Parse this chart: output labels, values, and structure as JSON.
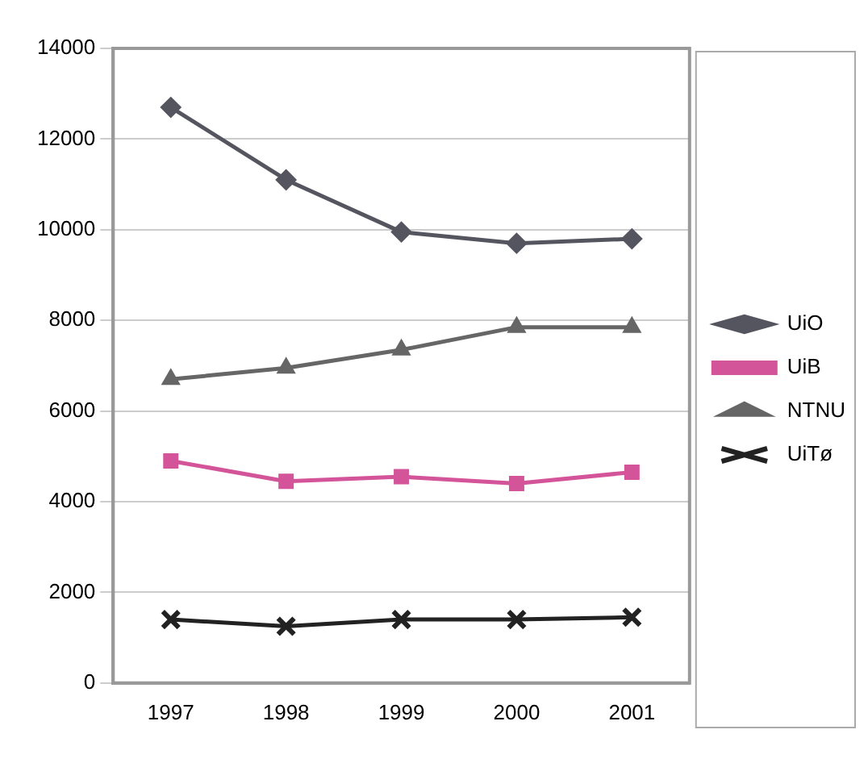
{
  "chart_data": {
    "type": "line",
    "categories": [
      "1997",
      "1998",
      "1999",
      "2000",
      "2001"
    ],
    "series": [
      {
        "name": "UiO",
        "color": "#555560",
        "marker": "diamond",
        "values": [
          12700,
          11100,
          9950,
          9700,
          9800
        ]
      },
      {
        "name": "UiB",
        "color": "#d4549a",
        "marker": "square",
        "values": [
          4900,
          4450,
          4550,
          4400,
          4650
        ]
      },
      {
        "name": "NTNU",
        "color": "#666666",
        "marker": "triangle",
        "values": [
          6700,
          6950,
          7350,
          7850,
          7850
        ]
      },
      {
        "name": "UiTø",
        "color": "#222222",
        "marker": "cross",
        "values": [
          1400,
          1250,
          1400,
          1400,
          1450
        ]
      }
    ],
    "ylim": [
      0,
      14000
    ],
    "yticks": [
      0,
      2000,
      4000,
      6000,
      8000,
      10000,
      12000,
      14000
    ],
    "grid": "y",
    "legend": "right"
  }
}
